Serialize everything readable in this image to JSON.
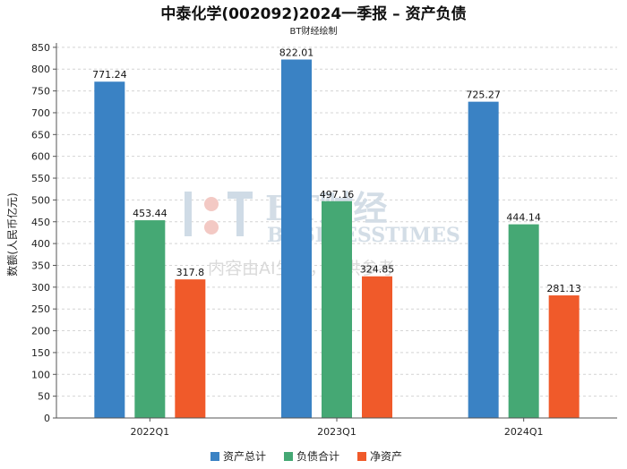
{
  "chart_data": {
    "type": "bar",
    "title": "中泰化学(002092)2024一季报 – 资产负债",
    "subtitle": "BT财经绘制",
    "ylabel": "数额(人民币亿元)",
    "xlabel": "",
    "categories": [
      "2022Q1",
      "2023Q1",
      "2024Q1"
    ],
    "series": [
      {
        "name": "资产总计",
        "color": "#3a82c4",
        "values": [
          771.24,
          822.01,
          725.27
        ],
        "labels": [
          "771.24",
          "822.01",
          "725.27"
        ]
      },
      {
        "name": "负债合计",
        "color": "#45a874",
        "values": [
          453.44,
          497.16,
          444.14
        ],
        "labels": [
          "453.44",
          "497.16",
          "444.14"
        ]
      },
      {
        "name": "净资产",
        "color": "#f05a2a",
        "values": [
          317.8,
          324.85,
          281.13
        ],
        "labels": [
          "317.8",
          "324.85",
          "281.13"
        ]
      }
    ],
    "ylim": [
      0,
      860
    ],
    "yticks": [
      0,
      50,
      100,
      150,
      200,
      250,
      300,
      350,
      400,
      450,
      500,
      550,
      600,
      650,
      700,
      750,
      800,
      850
    ],
    "grid": true,
    "legend_position": "bottom-center"
  },
  "watermark": {
    "brand": "BT财经",
    "brand_en": "BUSINESSTIMES",
    "notice": "内容由AI生成，仅供参考"
  }
}
